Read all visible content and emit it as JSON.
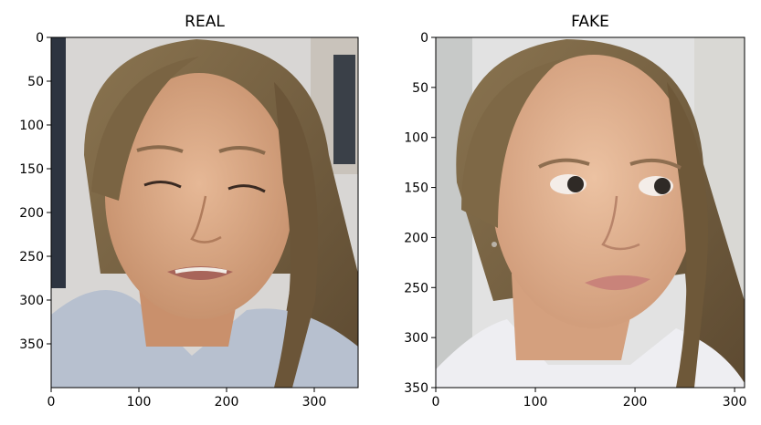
{
  "panels": [
    {
      "title": "REAL",
      "image_desc": "photo-real-face",
      "img_w": 350,
      "img_h": 400,
      "x_ticks": [
        0,
        100,
        200,
        300
      ],
      "y_ticks": [
        0,
        50,
        100,
        150,
        200,
        250,
        300,
        350
      ]
    },
    {
      "title": "FAKE",
      "image_desc": "photo-fake-face",
      "img_w": 310,
      "img_h": 350,
      "x_ticks": [
        0,
        100,
        200,
        300
      ],
      "y_ticks": [
        0,
        50,
        100,
        150,
        200,
        250,
        300,
        350
      ]
    }
  ],
  "colors": {
    "axis": "#000000",
    "hair": "#6f5a3b",
    "skin": "#d9a987",
    "shirt": "#b7c0cf",
    "bg_real": "#d8d6d4",
    "bg_fake": "#e2e2e2"
  }
}
